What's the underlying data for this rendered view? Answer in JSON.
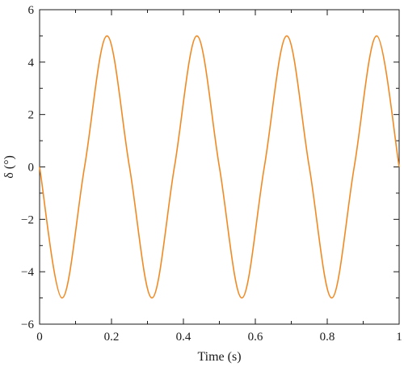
{
  "chart_data": {
    "type": "line",
    "title": "",
    "xlabel": "Time (s)",
    "ylabel": "δ (°)",
    "xlim": [
      0,
      1
    ],
    "ylim": [
      -6,
      6
    ],
    "x_ticks": [
      0,
      0.2,
      0.4,
      0.6,
      0.8,
      1
    ],
    "x_tick_labels": [
      "0",
      "0.2",
      "0.4",
      "0.6",
      "0.8",
      "1"
    ],
    "y_ticks": [
      -6,
      -4,
      -2,
      0,
      2,
      4,
      6
    ],
    "y_tick_labels": [
      "−6",
      "−4",
      "−2",
      "0",
      "2",
      "4",
      "6"
    ],
    "grid": false,
    "legend": "none",
    "series": [
      {
        "color": "#f08a24",
        "x": [
          0,
          0.0625,
          0.125,
          0.1875,
          0.25,
          0.3125,
          0.375,
          0.4375,
          0.5,
          0.5625,
          0.625,
          0.6875,
          0.75,
          0.8125,
          0.875,
          0.9375,
          1
        ],
        "y": [
          0,
          -5,
          0,
          5,
          0,
          -5,
          0,
          5,
          0,
          -5,
          0,
          5,
          0,
          -5,
          0,
          5,
          0
        ]
      }
    ]
  }
}
